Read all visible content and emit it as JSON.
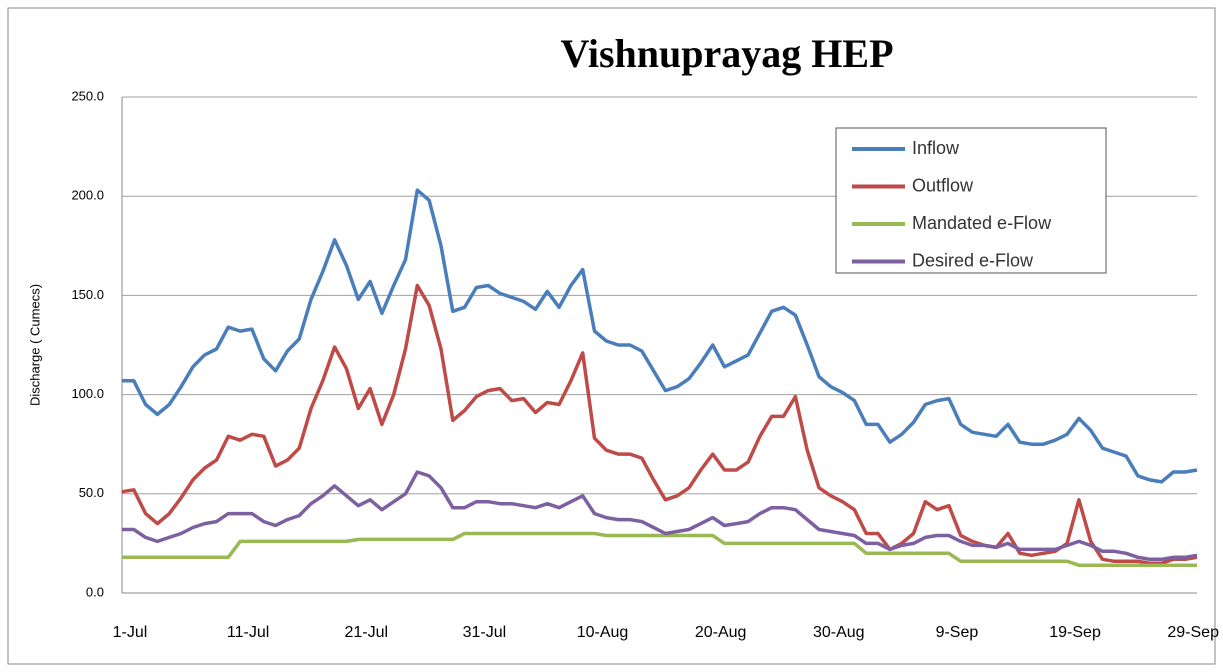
{
  "chart_data": {
    "type": "line",
    "title": "Vishnuprayag HEP",
    "y_label": "Discharge ( Cumecs)",
    "categories": [
      "1-Jul",
      null,
      null,
      null,
      null,
      null,
      null,
      null,
      null,
      null,
      "11-Jul",
      null,
      null,
      null,
      null,
      null,
      null,
      null,
      null,
      null,
      "21-Jul",
      null,
      null,
      null,
      null,
      null,
      null,
      null,
      null,
      null,
      "31-Jul",
      null,
      null,
      null,
      null,
      null,
      null,
      null,
      null,
      null,
      "10-Aug",
      null,
      null,
      null,
      null,
      null,
      null,
      null,
      null,
      null,
      "20-Aug",
      null,
      null,
      null,
      null,
      null,
      null,
      null,
      null,
      null,
      "30-Aug",
      null,
      null,
      null,
      null,
      null,
      null,
      null,
      null,
      null,
      "9-Sep",
      null,
      null,
      null,
      null,
      null,
      null,
      null,
      null,
      null,
      "19-Sep",
      null,
      null,
      null,
      null,
      null,
      null,
      null,
      null,
      null,
      "29-Sep",
      null
    ],
    "series": [
      {
        "name": "Inflow",
        "color": "#4a7ebb",
        "values": [
          107,
          107,
          95,
          90,
          95,
          104,
          114,
          120,
          123,
          134,
          132,
          133,
          118,
          112,
          122,
          128,
          148,
          162,
          178,
          165,
          148,
          157,
          141,
          155,
          168,
          203,
          198,
          175,
          142,
          144,
          154,
          155,
          151,
          149,
          147,
          143,
          152,
          144,
          155,
          163,
          132,
          127,
          125,
          125,
          122,
          112,
          102,
          104,
          108,
          116,
          125,
          114,
          117,
          120,
          131,
          142,
          144,
          140,
          125,
          109,
          104,
          101,
          97,
          85,
          85,
          76,
          80,
          86,
          95,
          97,
          98,
          85,
          81,
          80,
          79,
          85,
          76,
          75,
          75,
          77,
          80,
          88,
          82,
          73,
          71,
          69,
          59,
          57,
          56,
          61,
          61,
          62
        ]
      },
      {
        "name": "Outflow",
        "color": "#be4b48",
        "values": [
          51,
          52,
          40,
          35,
          40,
          48,
          57,
          63,
          67,
          79,
          77,
          80,
          79,
          64,
          67,
          73,
          93,
          107,
          124,
          113,
          93,
          103,
          85,
          100,
          123,
          155,
          145,
          123,
          87,
          92,
          99,
          102,
          103,
          97,
          98,
          91,
          96,
          95,
          107,
          121,
          78,
          72,
          70,
          70,
          68,
          57,
          47,
          49,
          53,
          62,
          70,
          62,
          62,
          66,
          79,
          89,
          89,
          99,
          72,
          53,
          49,
          46,
          42,
          30,
          30,
          22,
          25,
          30,
          46,
          42,
          44,
          29,
          26,
          24,
          23,
          30,
          20,
          19,
          20,
          21,
          25,
          47,
          26,
          17,
          16,
          16,
          16,
          15,
          15,
          17,
          17,
          18
        ]
      },
      {
        "name": "Mandated e-Flow",
        "color": "#98b954",
        "values": [
          18,
          18,
          18,
          18,
          18,
          18,
          18,
          18,
          18,
          18,
          26,
          26,
          26,
          26,
          26,
          26,
          26,
          26,
          26,
          26,
          27,
          27,
          27,
          27,
          27,
          27,
          27,
          27,
          27,
          30,
          30,
          30,
          30,
          30,
          30,
          30,
          30,
          30,
          30,
          30,
          30,
          29,
          29,
          29,
          29,
          29,
          29,
          29,
          29,
          29,
          29,
          25,
          25,
          25,
          25,
          25,
          25,
          25,
          25,
          25,
          25,
          25,
          25,
          20,
          20,
          20,
          20,
          20,
          20,
          20,
          20,
          16,
          16,
          16,
          16,
          16,
          16,
          16,
          16,
          16,
          16,
          14,
          14,
          14,
          14,
          14,
          14,
          14,
          14,
          14,
          14,
          14
        ]
      },
      {
        "name": "Desired e-Flow",
        "color": "#7d60a0",
        "values": [
          32,
          32,
          28,
          26,
          28,
          30,
          33,
          35,
          36,
          40,
          40,
          40,
          36,
          34,
          37,
          39,
          45,
          49,
          54,
          49,
          44,
          47,
          42,
          46,
          50,
          61,
          59,
          53,
          43,
          43,
          46,
          46,
          45,
          45,
          44,
          43,
          45,
          43,
          46,
          49,
          40,
          38,
          37,
          37,
          36,
          33,
          30,
          31,
          32,
          35,
          38,
          34,
          35,
          36,
          40,
          43,
          43,
          42,
          37,
          32,
          31,
          30,
          29,
          25,
          25,
          22,
          24,
          25,
          28,
          29,
          29,
          26,
          24,
          24,
          23,
          25,
          22,
          22,
          22,
          22,
          24,
          26,
          24,
          21,
          21,
          20,
          18,
          17,
          17,
          18,
          18,
          19
        ]
      }
    ],
    "ylim": [
      0,
      250
    ],
    "yticks": [
      {
        "value": 0,
        "label": "0.0"
      },
      {
        "value": 50,
        "label": "50.0"
      },
      {
        "value": 100,
        "label": "100.0"
      },
      {
        "value": 150,
        "label": "150.0"
      },
      {
        "value": 200,
        "label": "200.0"
      },
      {
        "value": 250,
        "label": "250.0"
      }
    ],
    "grid": true
  }
}
